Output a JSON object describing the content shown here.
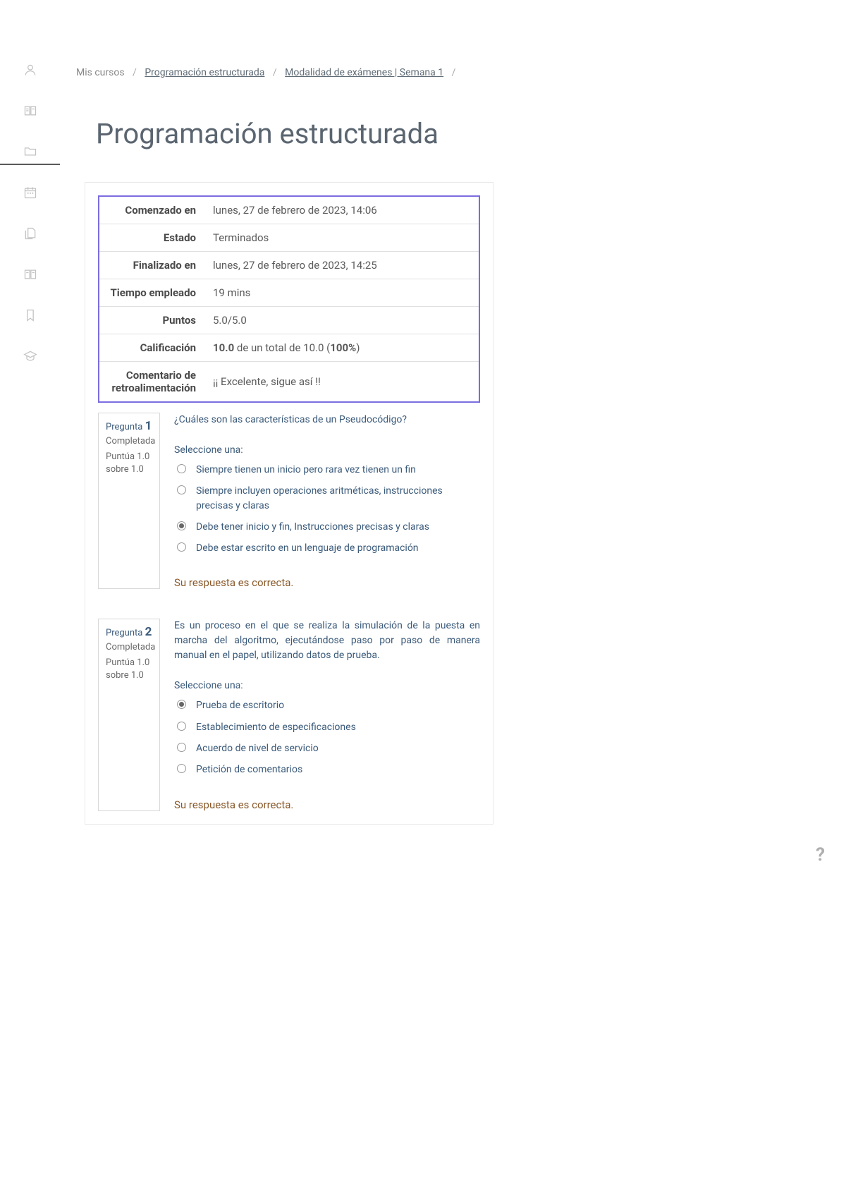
{
  "breadcrumb": {
    "root": "Mis cursos",
    "link1": "Programación estructurada",
    "link2": "Modalidad de exámenes | Semana 1"
  },
  "page_title": "Programación estructurada",
  "summary": {
    "started_label": "Comenzado en",
    "started_value": "lunes, 27 de febrero de 2023, 14:06",
    "state_label": "Estado",
    "state_value": "Terminados",
    "finished_label": "Finalizado en",
    "finished_value": "lunes, 27 de febrero de 2023, 14:25",
    "time_label": "Tiempo empleado",
    "time_value": "19 mins",
    "points_label": "Puntos",
    "points_value": "5.0/5.0",
    "grade_label": "Calificación",
    "grade_value_bold": "10.0",
    "grade_value_mid": " de un total de 10.0 (",
    "grade_value_pct": "100%",
    "grade_value_end": ")",
    "feedback_label": "Comentario de retroalimentación",
    "feedback_value": "¡¡ Excelente, sigue así !!"
  },
  "questions": [
    {
      "label": "Pregunta",
      "num": "1",
      "state": "Completada",
      "score": "Puntúa 1.0 sobre 1.0",
      "text": "¿Cuáles son las características de un Pseudocódigo?",
      "select_label": "Seleccione una:",
      "options": [
        {
          "text": "Siempre tienen un inicio pero rara vez tienen un fin",
          "selected": false
        },
        {
          "text": "Siempre incluyen operaciones aritméticas,  instrucciones precisas y claras",
          "selected": false
        },
        {
          "text": "Debe tener inicio y fin, Instrucciones precisas y claras",
          "selected": true
        },
        {
          "text": "Debe estar escrito en un lenguaje de programación",
          "selected": false
        }
      ],
      "feedback": "Su respuesta es correcta."
    },
    {
      "label": "Pregunta",
      "num": "2",
      "state": "Completada",
      "score": "Puntúa 1.0 sobre 1.0",
      "text": "Es un proceso en el que se realiza la simulación de la puesta en marcha del algoritmo, ejecutándose paso por paso de manera manual en el papel, utilizando datos de prueba.",
      "select_label": "Seleccione una:",
      "options": [
        {
          "text": "Prueba de escritorio",
          "selected": true
        },
        {
          "text": "Establecimiento de especificaciones",
          "selected": false
        },
        {
          "text": "Acuerdo de nivel de servicio",
          "selected": false
        },
        {
          "text": "Petición de comentarios",
          "selected": false
        }
      ],
      "feedback": "Su respuesta es correcta."
    }
  ],
  "help_icon": "?",
  "colors": {
    "accent_border": "#7a6de0",
    "link": "#5f6b75",
    "title": "#5a6570",
    "text": "#4a4a4a",
    "q_text": "#3a5a7a",
    "feedback": "#8a5a2a"
  }
}
